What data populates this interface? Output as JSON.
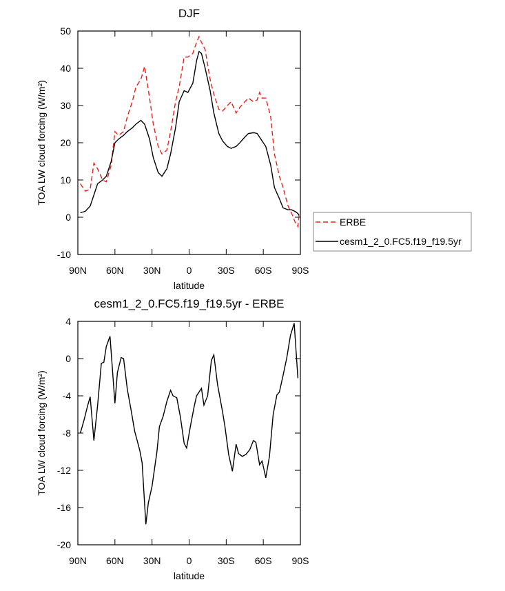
{
  "chart_data": [
    {
      "type": "line",
      "title": "DJF",
      "xlabel": "latitude",
      "ylabel": "TOA LW cloud forcing (W/m²)",
      "xlim": [
        90,
        -90
      ],
      "xticks": [
        {
          "value": 90,
          "label": "90N"
        },
        {
          "value": 60,
          "label": "60N"
        },
        {
          "value": 30,
          "label": "30N"
        },
        0,
        {
          "value": -30,
          "label": "30S"
        },
        {
          "value": -60,
          "label": "60S"
        },
        {
          "value": -90,
          "label": "90S"
        }
      ],
      "ylim": [
        -10,
        50
      ],
      "yticks": [
        -10,
        0,
        10,
        20,
        30,
        40,
        50
      ],
      "legend": "right",
      "x": [
        88,
        84,
        80,
        77,
        74,
        70,
        67,
        63,
        60,
        57,
        53,
        50,
        46,
        43,
        39,
        36,
        32,
        29,
        25,
        22,
        18,
        15,
        11,
        8,
        4,
        1,
        -3,
        -6,
        -8,
        -10,
        -13,
        -17,
        -20,
        -24,
        -27,
        -31,
        -34,
        -38,
        -41,
        -45,
        -48,
        -52,
        -55,
        -57,
        -59,
        -62,
        -66,
        -69,
        -73,
        -76,
        -80,
        -83,
        -86,
        -88,
        -89
      ],
      "series": [
        {
          "name": "ERBE",
          "color": "#e8201c",
          "dashed": true,
          "values": [
            9,
            7,
            7.5,
            14.5,
            13,
            10,
            9.5,
            14,
            23,
            22,
            23,
            27,
            31,
            35,
            37,
            40.5,
            32,
            25,
            19,
            17,
            18,
            23,
            31,
            35,
            43,
            43,
            44,
            47,
            48.5,
            47,
            45,
            37,
            33,
            29,
            28.5,
            30,
            31,
            28,
            29.5,
            31,
            32,
            31,
            31.5,
            33.5,
            32,
            32,
            27,
            17,
            11,
            8,
            3,
            1,
            -1.5,
            -2.5,
            1
          ]
        },
        {
          "name": "cesm1_2_0.FC5.f19_f19.5yr",
          "color": "#000000",
          "dashed": false,
          "values": [
            1.2,
            1.6,
            3,
            6,
            9,
            10,
            11,
            15,
            20,
            21,
            22,
            23,
            24,
            25,
            26,
            25,
            21,
            16,
            12,
            11,
            13,
            17,
            24,
            31,
            34,
            33.5,
            36,
            42,
            44.5,
            44,
            40,
            34,
            28,
            22.5,
            20.5,
            19,
            18.5,
            19,
            20,
            21.5,
            22.5,
            22.7,
            22.5,
            21.5,
            20.5,
            19,
            14,
            8,
            5,
            2.5,
            2,
            2,
            1.5,
            1,
            0.5
          ]
        }
      ]
    },
    {
      "type": "line",
      "title": "cesm1_2_0.FC5.f19_f19.5yr - ERBE",
      "xlabel": "latitude",
      "ylabel": "TOA LW cloud forcing (W/m²)",
      "xlim": [
        90,
        -90
      ],
      "xticks": [
        {
          "value": 90,
          "label": "90N"
        },
        {
          "value": 60,
          "label": "60N"
        },
        {
          "value": 30,
          "label": "30N"
        },
        0,
        {
          "value": -30,
          "label": "30S"
        },
        {
          "value": -60,
          "label": "60S"
        },
        {
          "value": -90,
          "label": "90S"
        }
      ],
      "ylim": [
        -20,
        4
      ],
      "yticks": [
        -20,
        -16,
        -12,
        -8,
        -4,
        0,
        4
      ],
      "x": [
        88,
        85,
        82,
        80,
        77,
        74,
        71,
        69,
        67,
        64,
        60,
        58,
        55,
        53,
        50,
        47,
        44,
        40,
        38,
        35,
        33,
        30,
        26,
        24,
        21,
        18,
        15,
        13,
        10,
        7,
        4,
        2,
        -1,
        -4,
        -6,
        -10,
        -12,
        -15,
        -18,
        -20,
        -23,
        -27,
        -29,
        -32,
        -35,
        -38,
        -40,
        -43,
        -46,
        -49,
        -52,
        -54,
        -57,
        -59,
        -62,
        -65,
        -68,
        -71,
        -73,
        -76,
        -79,
        -82,
        -85,
        -88
      ],
      "series": [
        {
          "color": "#000000",
          "dashed": false,
          "values": [
            -8,
            -6.6,
            -5,
            -4.1,
            -8.8,
            -5,
            -0.5,
            -0.4,
            1.3,
            2.4,
            -4.8,
            -1.5,
            0.1,
            0,
            -3.3,
            -5.5,
            -7.8,
            -9.8,
            -11.2,
            -17.8,
            -15.5,
            -13.7,
            -10,
            -7.3,
            -6.2,
            -4.6,
            -3.4,
            -4,
            -4.2,
            -6.3,
            -9.1,
            -9.6,
            -7.3,
            -5.2,
            -4,
            -3.2,
            -5,
            -4,
            -0.2,
            0.4,
            -2.8,
            -5.7,
            -7.3,
            -10.3,
            -12.1,
            -9.2,
            -10.2,
            -10.5,
            -10.3,
            -9.8,
            -8.8,
            -9,
            -11.4,
            -11,
            -12.8,
            -10.5,
            -6,
            -3.9,
            -3.6,
            -1.8,
            0.1,
            2.5,
            3.8,
            -2.1
          ]
        }
      ]
    }
  ]
}
